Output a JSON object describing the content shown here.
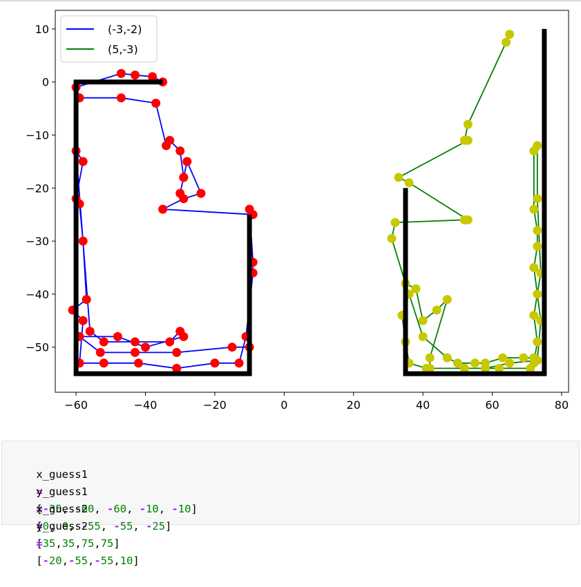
{
  "chart_data": {
    "type": "line",
    "xlim": [
      -66,
      82
    ],
    "ylim": [
      -58.5,
      13.5
    ],
    "xticks": [
      "−60",
      "−40",
      "−20",
      "0",
      "20",
      "40",
      "60",
      "80"
    ],
    "xtick_values": [
      -60,
      -40,
      -20,
      0,
      20,
      40,
      60,
      80
    ],
    "yticks": [
      "10",
      "0",
      "−10",
      "−20",
      "−30",
      "−40",
      "−50"
    ],
    "ytick_values": [
      10,
      0,
      -10,
      -20,
      -30,
      -40,
      -50
    ],
    "grid": false,
    "legend_position": "top-left",
    "legend": [
      {
        "label": "(-3,-2)",
        "color": "#0000ff"
      },
      {
        "label": "(5,-3)",
        "color": "#008000"
      }
    ],
    "series": [
      {
        "name": "(-3,-2)",
        "line_color": "#0000ff",
        "marker_color": "#ff0000",
        "x": [
          -35,
          -38,
          -43,
          -47,
          -60,
          -59,
          -47,
          -37,
          -34,
          -33,
          -30,
          -29,
          -30,
          -29,
          -28,
          -24,
          -29,
          -35,
          -9,
          -10,
          -9,
          -9,
          -11,
          -13,
          -20,
          -31,
          -42,
          -52,
          -59,
          -58,
          -61,
          -57,
          -58,
          -59,
          -60,
          -58,
          -60,
          -56,
          -52,
          -43,
          -33,
          -30,
          -29,
          -40,
          -48,
          -59,
          -53,
          -43,
          -31,
          -15,
          -10
        ],
        "y": [
          0,
          1,
          1.3,
          1.6,
          -1,
          -3,
          -3,
          -4,
          -12,
          -11,
          -13,
          -18,
          -21,
          -18,
          -15,
          -21,
          -22,
          -24,
          -25,
          -24,
          -34,
          -36,
          -48,
          -53,
          -53,
          -54,
          -53,
          -53,
          -53,
          -45,
          -43,
          -41,
          -30,
          -23,
          -22,
          -15,
          -13,
          -47,
          -49,
          -49,
          -49,
          -47,
          -48,
          -50,
          -48,
          -48,
          -51,
          -51,
          -51,
          -50,
          -50
        ]
      },
      {
        "name": "(5,-3)",
        "line_color": "#008000",
        "marker_color": "#c8c800",
        "x": [
          65,
          64,
          53,
          52,
          53,
          33,
          36,
          53,
          52,
          32,
          31,
          35,
          38,
          40,
          44,
          47,
          42,
          42,
          52,
          58,
          65,
          73,
          74,
          73,
          72,
          73,
          73,
          72,
          72,
          73,
          73,
          74,
          72,
          73,
          72,
          71,
          62,
          52,
          41,
          36,
          35,
          34,
          36,
          40,
          47,
          50,
          55,
          58,
          63,
          69,
          72
        ],
        "y": [
          9,
          7.5,
          -8,
          -11,
          -11,
          -18,
          -19,
          -26,
          -26,
          -26.5,
          -29.5,
          -38,
          -39,
          -45,
          -43,
          -41,
          -52,
          -54,
          -54,
          -54,
          -53,
          -52.5,
          -45,
          -40,
          -35,
          -31,
          -28,
          -24,
          -13,
          -12,
          -22,
          -36,
          -44,
          -49,
          -53,
          -54,
          -54,
          -54,
          -54,
          -53,
          -49,
          -44,
          -40,
          -48,
          -52,
          -53,
          -53,
          -53,
          -52,
          -52,
          -52
        ]
      },
      {
        "name": "guess1",
        "line_color": "#000000",
        "x": [
          -35,
          -60,
          -60,
          -10,
          -10
        ],
        "y": [
          0,
          0,
          -55,
          -55,
          -25
        ]
      },
      {
        "name": "guess2",
        "line_color": "#000000",
        "x": [
          35,
          35,
          75,
          75
        ],
        "y": [
          -20,
          -55,
          -55,
          10
        ]
      }
    ]
  },
  "code_cell": {
    "lines": [
      {
        "name": "x_guess1",
        "op": "=",
        "values": [
          "-35",
          "-60",
          "-60",
          "-10",
          "-10"
        ],
        "sep": ", "
      },
      {
        "name": "y_guess1",
        "op": "=",
        "values": [
          "0",
          "0",
          "-55",
          "-55",
          "-25"
        ],
        "sep": ", "
      },
      {
        "name": "x_guess2",
        "op": "=",
        "values": [
          "35",
          "35",
          "75",
          "75"
        ],
        "sep": ","
      },
      {
        "name": "y_guess2",
        "op": "=",
        "values": [
          "-20",
          "-55",
          "-55",
          "10"
        ],
        "sep": ","
      }
    ]
  }
}
